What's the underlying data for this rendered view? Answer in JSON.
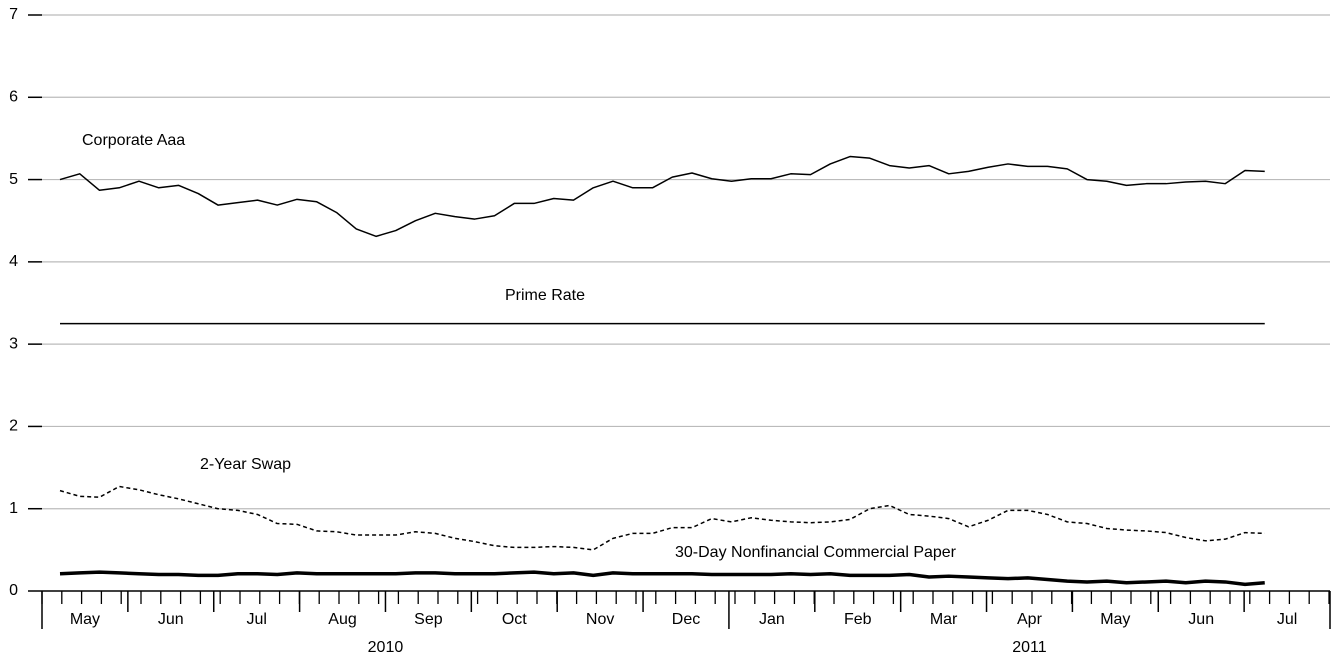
{
  "chart_data": {
    "type": "line",
    "months": [
      "May",
      "Jun",
      "Jul",
      "Aug",
      "Sep",
      "Oct",
      "Nov",
      "Dec",
      "Jan",
      "Feb",
      "Mar",
      "Apr",
      "May",
      "Jun",
      "Jul"
    ],
    "years": [
      "2010",
      "2011"
    ],
    "ylim": [
      0,
      7
    ],
    "yticks": [
      0,
      1,
      2,
      3,
      4,
      5,
      6,
      7
    ],
    "grid": true,
    "series": [
      {
        "name": "Corporate Aaa",
        "color": "#000000",
        "style": "solid",
        "values": [
          5.0,
          5.07,
          4.87,
          4.9,
          4.98,
          4.9,
          4.93,
          4.83,
          4.69,
          4.72,
          4.75,
          4.69,
          4.76,
          4.73,
          4.6,
          4.4,
          4.31,
          4.38,
          4.5,
          4.59,
          4.55,
          4.52,
          4.56,
          4.71,
          4.71,
          4.77,
          4.75,
          4.9,
          4.98,
          4.9,
          4.9,
          5.03,
          5.08,
          5.01,
          4.98,
          5.01,
          5.01,
          5.07,
          5.06,
          5.19,
          5.28,
          5.26,
          5.17,
          5.14,
          5.17,
          5.07,
          5.1,
          5.15,
          5.19,
          5.16,
          5.16,
          5.13,
          5.0,
          4.98,
          4.93,
          4.95,
          4.95,
          4.97,
          4.98,
          4.95,
          5.11,
          5.1
        ]
      },
      {
        "name": "Prime Rate",
        "color": "#000000",
        "style": "solid",
        "values": [
          3.25,
          3.25,
          3.25,
          3.25,
          3.25,
          3.25,
          3.25,
          3.25,
          3.25,
          3.25,
          3.25,
          3.25,
          3.25,
          3.25,
          3.25,
          3.25,
          3.25,
          3.25,
          3.25,
          3.25,
          3.25,
          3.25,
          3.25,
          3.25,
          3.25,
          3.25,
          3.25,
          3.25,
          3.25,
          3.25,
          3.25,
          3.25,
          3.25,
          3.25,
          3.25,
          3.25,
          3.25,
          3.25,
          3.25,
          3.25,
          3.25,
          3.25,
          3.25,
          3.25,
          3.25,
          3.25,
          3.25,
          3.25,
          3.25,
          3.25,
          3.25,
          3.25,
          3.25,
          3.25,
          3.25,
          3.25,
          3.25,
          3.25,
          3.25,
          3.25,
          3.25,
          3.25
        ]
      },
      {
        "name": "2-Year Swap",
        "color": "#000000",
        "style": "dashed",
        "values": [
          1.22,
          1.15,
          1.14,
          1.27,
          1.23,
          1.17,
          1.12,
          1.06,
          1.0,
          0.98,
          0.93,
          0.82,
          0.81,
          0.73,
          0.72,
          0.68,
          0.68,
          0.68,
          0.72,
          0.7,
          0.64,
          0.6,
          0.55,
          0.53,
          0.53,
          0.54,
          0.53,
          0.5,
          0.64,
          0.7,
          0.7,
          0.77,
          0.77,
          0.88,
          0.84,
          0.89,
          0.86,
          0.84,
          0.83,
          0.84,
          0.87,
          1.0,
          1.04,
          0.93,
          0.91,
          0.88,
          0.78,
          0.86,
          0.98,
          0.98,
          0.93,
          0.84,
          0.82,
          0.76,
          0.74,
          0.73,
          0.71,
          0.65,
          0.61,
          0.63,
          0.71,
          0.7
        ]
      },
      {
        "name": "30-Day Nonfinancial Commercial Paper",
        "color": "#000000",
        "style": "thick",
        "values": [
          0.21,
          0.22,
          0.23,
          0.22,
          0.21,
          0.2,
          0.2,
          0.19,
          0.19,
          0.21,
          0.21,
          0.2,
          0.22,
          0.21,
          0.21,
          0.21,
          0.21,
          0.21,
          0.22,
          0.22,
          0.21,
          0.21,
          0.21,
          0.22,
          0.23,
          0.21,
          0.22,
          0.19,
          0.22,
          0.21,
          0.21,
          0.21,
          0.21,
          0.2,
          0.2,
          0.2,
          0.2,
          0.21,
          0.2,
          0.21,
          0.19,
          0.19,
          0.19,
          0.2,
          0.17,
          0.18,
          0.17,
          0.16,
          0.15,
          0.16,
          0.14,
          0.12,
          0.11,
          0.12,
          0.1,
          0.11,
          0.12,
          0.1,
          0.12,
          0.11,
          0.08,
          0.1
        ]
      }
    ]
  }
}
